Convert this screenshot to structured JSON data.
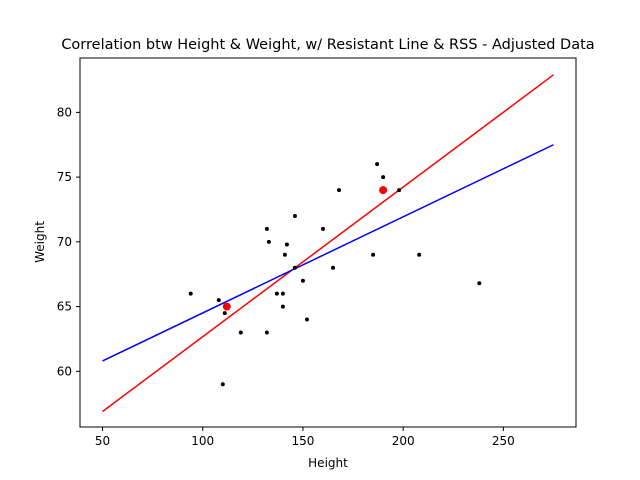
{
  "chart_data": {
    "type": "scatter",
    "title": "Correlation btw Height & Weight, w/ Resistant Line & RSS - Adjusted Data",
    "xlabel": "Height",
    "ylabel": "Weight",
    "xlim": [
      38.75,
      286.25
    ],
    "ylim": [
      55.7,
      84.2
    ],
    "xticks": [
      50,
      100,
      150,
      200,
      250
    ],
    "yticks": [
      60,
      65,
      70,
      75,
      80
    ],
    "grid": false,
    "legend": "none",
    "series": [
      {
        "type": "scatter",
        "color": "#000000",
        "points": [
          [
            94,
            66
          ],
          [
            108,
            65.5
          ],
          [
            110,
            59
          ],
          [
            111,
            64.5
          ],
          [
            119,
            63
          ],
          [
            132,
            71
          ],
          [
            133,
            70
          ],
          [
            132,
            63
          ],
          [
            137,
            66
          ],
          [
            140,
            65
          ],
          [
            140,
            66
          ],
          [
            141,
            69
          ],
          [
            142,
            69.8
          ],
          [
            146,
            72
          ],
          [
            146,
            68
          ],
          [
            150,
            67
          ],
          [
            152,
            64
          ],
          [
            160,
            71
          ],
          [
            165,
            68
          ],
          [
            168,
            74
          ],
          [
            185,
            69
          ],
          [
            187,
            76
          ],
          [
            190,
            75
          ],
          [
            198,
            74
          ],
          [
            208,
            69
          ],
          [
            238,
            66.8
          ]
        ]
      },
      {
        "type": "scatter",
        "color": "#ff0000",
        "points": [
          [
            112,
            65
          ],
          [
            190,
            74
          ]
        ]
      },
      {
        "type": "line",
        "color": "#ff0000",
        "x": [
          50,
          275
        ],
        "y": [
          56.9,
          82.9
        ]
      },
      {
        "type": "line",
        "color": "#0000ff",
        "x": [
          50,
          275
        ],
        "y": [
          60.8,
          77.5
        ]
      }
    ]
  }
}
